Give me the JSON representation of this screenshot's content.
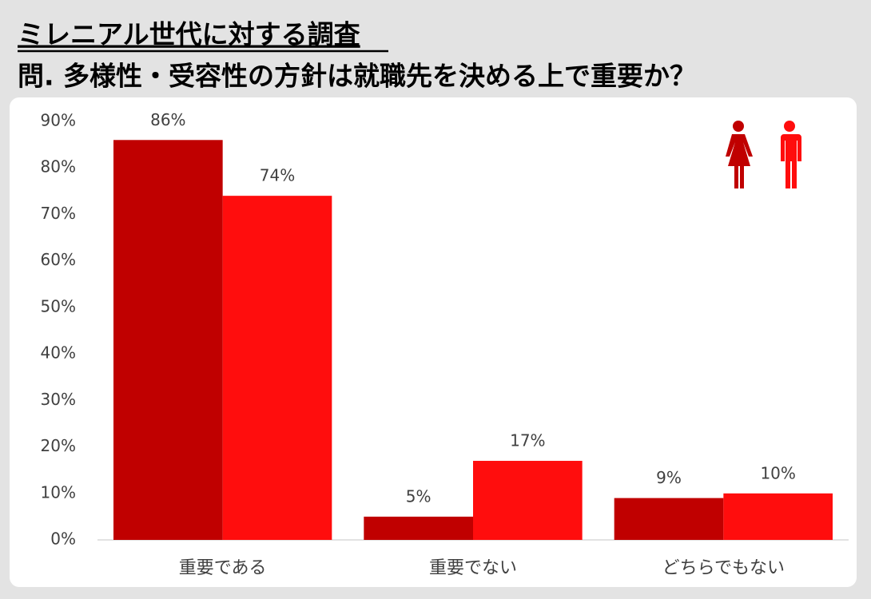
{
  "chart_data": {
    "type": "bar",
    "title": "ミレニアル世代に対する調査",
    "subtitle": "問. 多様性・受容性の方針は就職先を決める上で重要か？",
    "categories": [
      "重要である",
      "重要でない",
      "どちらでもない"
    ],
    "series": [
      {
        "color": "#c00000",
        "values": [
          86,
          5,
          9
        ],
        "value_labels": [
          "86%",
          "5%",
          "9%"
        ]
      },
      {
        "color": "#ff0d0d",
        "values": [
          74,
          17,
          10
        ],
        "value_labels": [
          "74%",
          "17%",
          "10%"
        ]
      }
    ],
    "ylim": [
      0,
      90
    ],
    "yticks": [
      {
        "value": 0,
        "label": "0%"
      },
      {
        "value": 10,
        "label": "10%"
      },
      {
        "value": 20,
        "label": "20%"
      },
      {
        "value": 30,
        "label": "30%"
      },
      {
        "value": 40,
        "label": "40%"
      },
      {
        "value": 50,
        "label": "50%"
      },
      {
        "value": 60,
        "label": "60%"
      },
      {
        "value": 70,
        "label": "70%"
      },
      {
        "value": 80,
        "label": "80%"
      },
      {
        "value": 90,
        "label": "90%"
      }
    ],
    "grid": false
  }
}
